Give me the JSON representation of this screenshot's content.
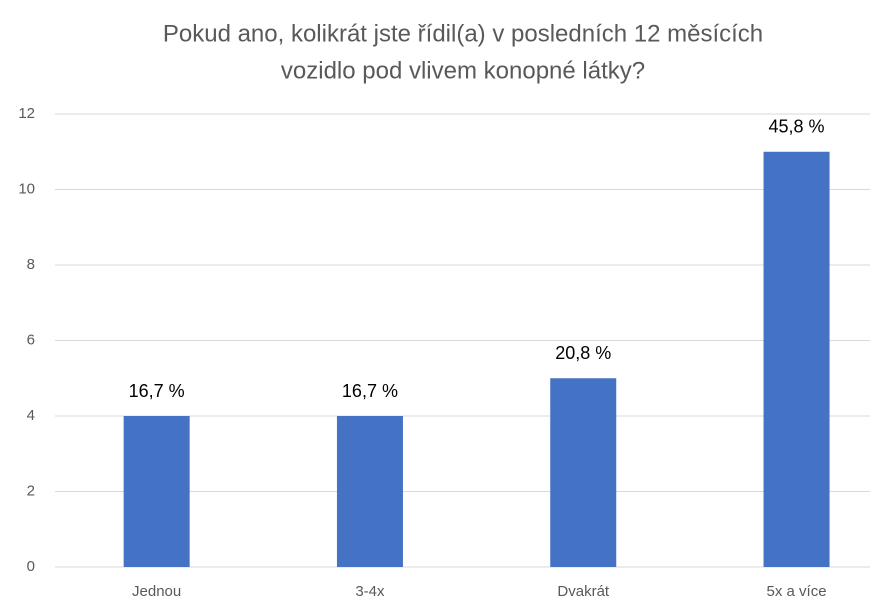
{
  "chart_data": {
    "type": "bar",
    "title": [
      "Pokud ano, kolikrát jste řídil(a) v posledních 12 měsících",
      "vozidlo pod vlivem konopné látky?"
    ],
    "categories": [
      "Jednou",
      "3-4x",
      "Dvakrát",
      "5x a více"
    ],
    "values": [
      4,
      4,
      5,
      11
    ],
    "value_labels": [
      "16,7 %",
      "16,7 %",
      "20,8 %",
      "45,8 %"
    ],
    "color": "#4472c4",
    "ylim": [
      0,
      12
    ],
    "yticks": [
      0,
      2,
      4,
      6,
      8,
      10,
      12
    ],
    "grid": true
  }
}
